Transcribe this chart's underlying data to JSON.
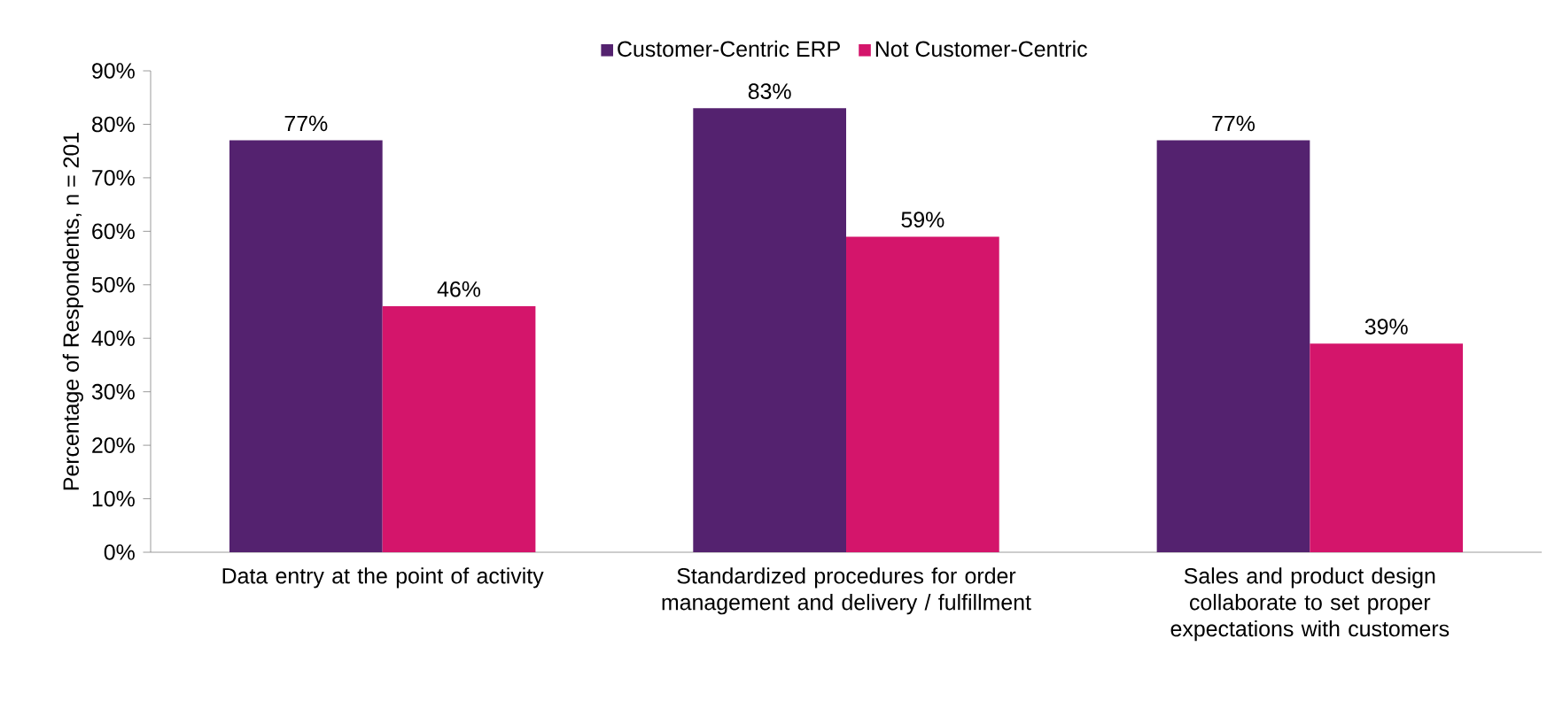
{
  "chart_data": {
    "type": "bar",
    "ylabel": "Percentage of Respondents, n = 201",
    "categories": [
      "Data entry at the point of activity",
      "Standardized procedures for order management and delivery / fulfillment",
      "Sales and product design collaborate to set proper expectations with customers"
    ],
    "series": [
      {
        "name": "Customer-Centric ERP",
        "color": "#54226f",
        "values": [
          77,
          83,
          77
        ],
        "value_labels": [
          "77%",
          "83%",
          "77%"
        ]
      },
      {
        "name": "Not Customer-Centric",
        "color": "#d4156b",
        "values": [
          46,
          59,
          39
        ],
        "value_labels": [
          "46%",
          "59%",
          "39%"
        ]
      }
    ],
    "ylim": [
      0,
      90
    ],
    "yticks": [
      {
        "value": 0,
        "label": "0%"
      },
      {
        "value": 10,
        "label": "10%"
      },
      {
        "value": 20,
        "label": "20%"
      },
      {
        "value": 30,
        "label": "30%"
      },
      {
        "value": 40,
        "label": "40%"
      },
      {
        "value": 50,
        "label": "50%"
      },
      {
        "value": 60,
        "label": "60%"
      },
      {
        "value": 70,
        "label": "70%"
      },
      {
        "value": 80,
        "label": "80%"
      },
      {
        "value": 90,
        "label": "90%"
      }
    ],
    "grid": false,
    "legend": "top"
  }
}
